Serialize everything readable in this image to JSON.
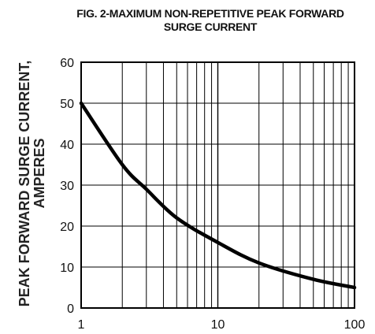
{
  "chart_data": {
    "type": "line",
    "title": "FIG. 2-MAXIMUM NON-REPETITIVE PEAK FORWARD",
    "subtitle": "SURGE CURRENT",
    "ylabel": "PEAK FORWARD SURGE CURRENT,",
    "ylabel_line2": "AMPERES",
    "xlabel": "",
    "x_scale": "log",
    "xlim": [
      1,
      100
    ],
    "ylim": [
      0,
      60
    ],
    "grid": true,
    "x_ticks": [
      1,
      10,
      100
    ],
    "x_tick_labels": [
      "1",
      "10",
      "100"
    ],
    "y_ticks": [
      0,
      10,
      20,
      30,
      40,
      50,
      60
    ],
    "y_tick_labels": [
      "0",
      "10",
      "20",
      "30",
      "40",
      "50",
      "60"
    ],
    "series": [
      {
        "x": [
          1,
          2,
          3,
          5,
          10,
          20,
          50,
          100
        ],
        "values": [
          50,
          35,
          29,
          22,
          16,
          11,
          7,
          5
        ],
        "color": "#000000"
      }
    ]
  }
}
